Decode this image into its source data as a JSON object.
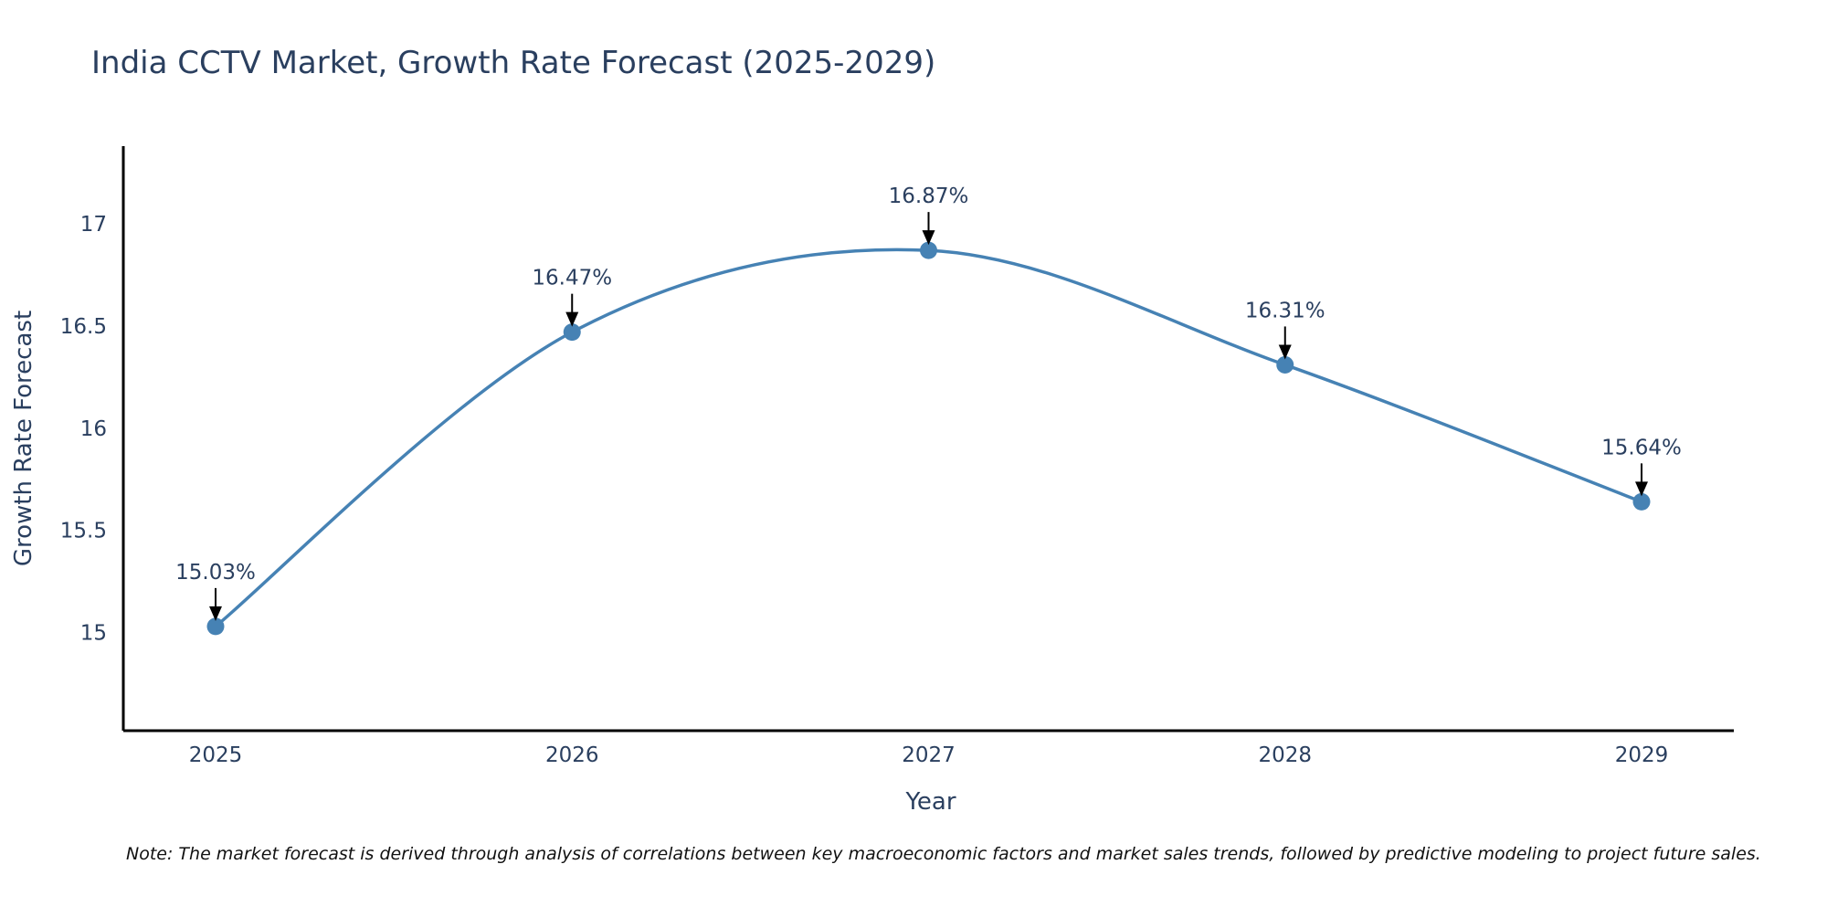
{
  "chart_data": {
    "type": "line",
    "title": "India CCTV Market, Growth Rate Forecast (2025-2029)",
    "xlabel": "Year",
    "ylabel": "Growth Rate Forecast",
    "categories": [
      "2025",
      "2026",
      "2027",
      "2028",
      "2029"
    ],
    "series": [
      {
        "name": "Growth Rate Forecast",
        "values": [
          15.03,
          16.47,
          16.87,
          16.31,
          15.64
        ]
      }
    ],
    "data_labels": [
      "15.03%",
      "16.47%",
      "16.87%",
      "16.31%",
      "15.64%"
    ],
    "ylim": [
      14.52,
      17.38
    ],
    "yticks": [
      15,
      15.5,
      16,
      16.5,
      17
    ],
    "ytick_labels": [
      "15",
      "15.5",
      "16",
      "16.5",
      "17"
    ],
    "grid": false,
    "line_shape": "spline",
    "colors": {
      "line": "#4682B4",
      "marker": "#4682B4",
      "text": "#2A3F5F",
      "axis": "#000000",
      "arrow": "#000000"
    },
    "note": "Note: The market forecast is derived through analysis of correlations between key macroeconomic factors and market sales trends, followed by predictive modeling to project future sales."
  }
}
